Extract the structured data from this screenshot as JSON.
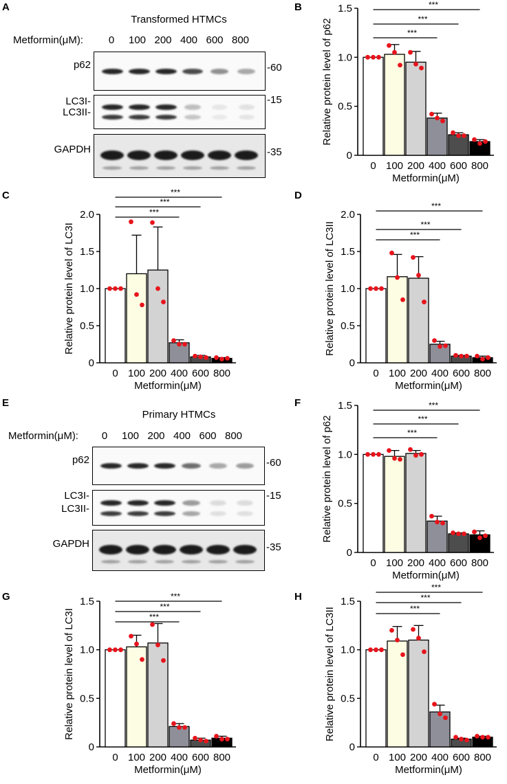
{
  "panel_letters": [
    "A",
    "B",
    "C",
    "D",
    "E",
    "F",
    "G",
    "H"
  ],
  "blots": [
    {
      "title": "Transformed HTMCs",
      "metformin_label": "Metformin(μM):",
      "lanes": [
        "0",
        "100",
        "200",
        "400",
        "600",
        "800"
      ],
      "rows": [
        {
          "label": "p62",
          "mw": "-60",
          "band_intensity": [
            0.9,
            0.9,
            0.9,
            0.75,
            0.45,
            0.35
          ]
        },
        {
          "label": "LC3I-",
          "label2": "LC3II-",
          "mw": "-15",
          "band_intensity": [
            0.9,
            0.9,
            0.9,
            0.25,
            0.08,
            0.1
          ]
        },
        {
          "label": "GAPDH",
          "mw": "-35",
          "band_intensity": [
            0.95,
            0.95,
            0.95,
            0.95,
            0.95,
            0.95
          ]
        }
      ]
    },
    {
      "title": "Primary HTMCs",
      "metformin_label": "Metformin(μM):",
      "lanes": [
        "0",
        "100",
        "200",
        "400",
        "600",
        "800"
      ],
      "rows": [
        {
          "label": "p62",
          "mw": "-60",
          "band_intensity": [
            0.9,
            0.9,
            0.9,
            0.6,
            0.35,
            0.4
          ]
        },
        {
          "label": "LC3I-",
          "label2": "LC3II-",
          "mw": "-15",
          "band_intensity": [
            0.9,
            0.9,
            0.9,
            0.4,
            0.12,
            0.12
          ]
        },
        {
          "label": "GAPDH",
          "mw": "-35",
          "band_intensity": [
            0.95,
            0.95,
            0.95,
            0.95,
            0.95,
            0.95
          ]
        }
      ]
    }
  ],
  "chart_data": [
    {
      "panel": "B",
      "type": "bar",
      "title": "",
      "categories": [
        "0",
        "100",
        "200",
        "400",
        "600",
        "800"
      ],
      "values": [
        1.0,
        1.03,
        0.95,
        0.38,
        0.21,
        0.14
      ],
      "errors": [
        0.0,
        0.1,
        0.11,
        0.05,
        0.02,
        0.02
      ],
      "points": [
        [
          1.0,
          1.0,
          1.0
        ],
        [
          1.12,
          1.05,
          0.92
        ],
        [
          1.05,
          0.93,
          0.89
        ],
        [
          0.42,
          0.38,
          0.35
        ],
        [
          0.23,
          0.2,
          0.2
        ],
        [
          0.16,
          0.12,
          0.14
        ]
      ],
      "xlabel": "Metformin(μM)",
      "ylabel": "Relative protein level of p62",
      "ylim": [
        0,
        1.5
      ],
      "yticks": [
        "0",
        "0.5",
        "1.0",
        "1.5"
      ],
      "significance": [
        "***",
        "***",
        "***"
      ],
      "sig_targets": [
        3,
        4,
        5
      ]
    },
    {
      "panel": "C",
      "type": "bar",
      "title": "",
      "categories": [
        "0",
        "100",
        "200",
        "400",
        "600",
        "800"
      ],
      "values": [
        1.0,
        1.2,
        1.25,
        0.27,
        0.08,
        0.06
      ],
      "errors": [
        0.0,
        0.52,
        0.58,
        0.04,
        0.02,
        0.01
      ],
      "points": [
        [
          1.0,
          1.0,
          1.0
        ],
        [
          1.9,
          0.92,
          0.78
        ],
        [
          1.89,
          1.0,
          0.82
        ],
        [
          0.3,
          0.25,
          0.25
        ],
        [
          0.09,
          0.08,
          0.07
        ],
        [
          0.07,
          0.05,
          0.06
        ]
      ],
      "xlabel": "Metformin(μM)",
      "ylabel": "Relative protein level of LC3I",
      "ylim": [
        0,
        2.0
      ],
      "yticks": [
        "0",
        "0.5",
        "1.0",
        "1.5",
        "2.0"
      ],
      "significance": [
        "***",
        "***",
        "***"
      ],
      "sig_targets": [
        3,
        4,
        5
      ]
    },
    {
      "panel": "D",
      "type": "bar",
      "title": "",
      "categories": [
        "0",
        "100",
        "200",
        "400",
        "600",
        "800"
      ],
      "values": [
        1.0,
        1.16,
        1.14,
        0.25,
        0.09,
        0.07
      ],
      "errors": [
        0.0,
        0.3,
        0.29,
        0.04,
        0.01,
        0.02
      ],
      "points": [
        [
          1.0,
          1.0,
          1.0
        ],
        [
          1.48,
          1.15,
          0.85
        ],
        [
          1.42,
          1.18,
          0.82
        ],
        [
          0.3,
          0.22,
          0.23
        ],
        [
          0.1,
          0.09,
          0.09
        ],
        [
          0.09,
          0.05,
          0.07
        ]
      ],
      "xlabel": "Metformin(μM)",
      "ylabel": "Relative protein level of LC3II",
      "ylim": [
        0,
        2.0
      ],
      "yticks": [
        "0",
        "0.5",
        "1.0",
        "1.5",
        "2.0"
      ],
      "significance": [
        "***",
        "***",
        "***"
      ],
      "sig_targets": [
        3,
        4,
        5
      ]
    },
    {
      "panel": "F",
      "type": "bar",
      "title": "",
      "categories": [
        "0",
        "100",
        "200",
        "400",
        "600",
        "800"
      ],
      "values": [
        1.0,
        0.98,
        1.01,
        0.32,
        0.19,
        0.18
      ],
      "errors": [
        0.0,
        0.06,
        0.03,
        0.05,
        0.01,
        0.04
      ],
      "points": [
        [
          1.0,
          1.0,
          1.0
        ],
        [
          1.04,
          0.96,
          0.95
        ],
        [
          1.05,
          0.99,
          1.0
        ],
        [
          0.37,
          0.31,
          0.3
        ],
        [
          0.2,
          0.19,
          0.19
        ],
        [
          0.21,
          0.15,
          0.17
        ]
      ],
      "xlabel": "Metformin(μM)",
      "ylabel": "Relative protein level of p62",
      "ylim": [
        0,
        1.5
      ],
      "yticks": [
        "0",
        "0.5",
        "1.0",
        "1.5"
      ],
      "significance": [
        "***",
        "***",
        "***"
      ],
      "sig_targets": [
        3,
        4,
        5
      ]
    },
    {
      "panel": "G",
      "type": "bar",
      "title": "",
      "categories": [
        "0",
        "100",
        "200",
        "400",
        "600",
        "800"
      ],
      "values": [
        1.0,
        1.03,
        1.07,
        0.21,
        0.07,
        0.09
      ],
      "errors": [
        0.0,
        0.12,
        0.2,
        0.03,
        0.02,
        0.02
      ],
      "points": [
        [
          1.0,
          1.0,
          1.0
        ],
        [
          1.14,
          1.06,
          0.9
        ],
        [
          1.26,
          1.05,
          0.89
        ],
        [
          0.24,
          0.2,
          0.2
        ],
        [
          0.09,
          0.07,
          0.06
        ],
        [
          0.11,
          0.08,
          0.08
        ]
      ],
      "xlabel": "Metformin(μM)",
      "ylabel": "Relative protein level of LC3I",
      "ylim": [
        0,
        1.5
      ],
      "yticks": [
        "0",
        "0.5",
        "1.0",
        "1.5"
      ],
      "significance": [
        "***",
        "***",
        "***"
      ],
      "sig_targets": [
        3,
        4,
        5
      ]
    },
    {
      "panel": "H",
      "type": "bar",
      "title": "",
      "categories": [
        "0",
        "100",
        "200",
        "400",
        "600",
        "800"
      ],
      "values": [
        1.0,
        1.09,
        1.1,
        0.36,
        0.08,
        0.1
      ],
      "errors": [
        0.0,
        0.15,
        0.15,
        0.07,
        0.01,
        0.01
      ],
      "points": [
        [
          1.0,
          1.0,
          1.0
        ],
        [
          1.2,
          1.1,
          0.95
        ],
        [
          1.21,
          1.12,
          0.98
        ],
        [
          0.44,
          0.34,
          0.3
        ],
        [
          0.1,
          0.08,
          0.07
        ],
        [
          0.11,
          0.1,
          0.1
        ]
      ],
      "xlabel": "Metformin(μM)",
      "ylabel": "Relative protein level of LC3II",
      "ylim": [
        0,
        1.5
      ],
      "yticks": [
        "0",
        "0.5",
        "1.0",
        "1.5"
      ],
      "significance": [
        "***",
        "***",
        "***"
      ],
      "sig_targets": [
        3,
        4,
        5
      ]
    }
  ],
  "colors": {
    "bars": [
      "#ffffff",
      "#fdfde3",
      "#d3d3d3",
      "#8f8f99",
      "#4d4d4d",
      "#000000"
    ],
    "points": "#e8141c",
    "axis": "#000000"
  }
}
